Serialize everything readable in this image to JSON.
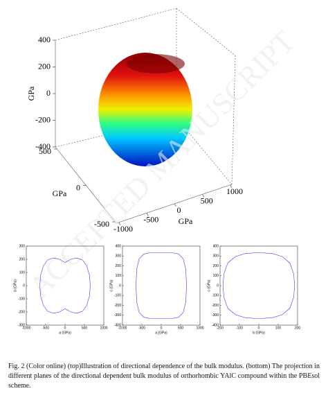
{
  "chart_data": [
    {
      "type": "surface3d",
      "xlabel": "GPa",
      "ylabel": "GPa",
      "zlabel": "GPa",
      "xlim": [
        -1000,
        1000
      ],
      "xticks": [
        -1000,
        -500,
        0,
        500,
        1000
      ],
      "ylim": [
        -500,
        500
      ],
      "yticks": [
        -500,
        0,
        500
      ],
      "zlim": [
        -400,
        400
      ],
      "zticks": [
        -400,
        -200,
        0,
        200,
        400
      ]
    },
    {
      "type": "line",
      "xlabel": "a (GPa)",
      "ylabel": "b (GPa)",
      "color": "#3b3bff",
      "xlim": [
        -1000,
        1000
      ],
      "xticks": [
        -1000,
        -500,
        0,
        500,
        1000
      ],
      "ylim": [
        -300,
        300
      ],
      "yticks": [
        -300,
        -200,
        -100,
        0,
        100,
        200,
        300
      ],
      "x": [
        0,
        150,
        300,
        450,
        560,
        630,
        650,
        630,
        560,
        450,
        300,
        150,
        0,
        -150,
        -300,
        -450,
        -560,
        -630,
        -650,
        -630,
        -560,
        -450,
        -300,
        -150,
        0
      ],
      "values": [
        175,
        200,
        210,
        195,
        150,
        80,
        0,
        -80,
        -150,
        -195,
        -210,
        -200,
        -175,
        -200,
        -210,
        -195,
        -150,
        -80,
        0,
        80,
        150,
        195,
        210,
        200,
        175
      ]
    },
    {
      "type": "line",
      "xlabel": "a (GPa)",
      "ylabel": "c (GPa)",
      "color": "#3b3bff",
      "xlim": [
        -1000,
        1000
      ],
      "xticks": [
        -1000,
        -500,
        0,
        500,
        1000
      ],
      "ylim": [
        -400,
        400
      ],
      "yticks": [
        -400,
        -300,
        -200,
        -100,
        0,
        100,
        200,
        300,
        400
      ],
      "x": [
        0,
        250,
        450,
        570,
        630,
        655,
        630,
        570,
        450,
        250,
        0,
        -250,
        -450,
        -570,
        -630,
        -655,
        -630,
        -570,
        -450,
        -250,
        0
      ],
      "values": [
        335,
        335,
        320,
        270,
        170,
        0,
        -170,
        -270,
        -320,
        -335,
        -335,
        -335,
        -320,
        -270,
        -170,
        0,
        170,
        270,
        320,
        335,
        335
      ]
    },
    {
      "type": "line",
      "xlabel": "b (GPa)",
      "ylabel": "c (GPa)",
      "color": "#3b3bff",
      "xlim": [
        -200,
        200
      ],
      "xticks": [
        -200,
        -100,
        0,
        100,
        200
      ],
      "ylim": [
        -400,
        400
      ],
      "yticks": [
        -400,
        -300,
        -200,
        -100,
        0,
        100,
        200,
        300,
        400
      ],
      "x": [
        0,
        70,
        120,
        160,
        180,
        185,
        180,
        160,
        120,
        70,
        0,
        -70,
        -120,
        -160,
        -180,
        -185,
        -180,
        -160,
        -120,
        -70,
        0
      ],
      "values": [
        335,
        325,
        295,
        230,
        120,
        0,
        -120,
        -230,
        -295,
        -325,
        -335,
        -325,
        -295,
        -230,
        -120,
        0,
        120,
        230,
        295,
        325,
        335
      ]
    }
  ],
  "watermark": "ACCEPTED MANUSCRIPT",
  "caption": "Fig. 2 (Color online) (top)Illustration of directional dependence of the bulk modulus. (bottom) The projection in different planes of the directional dependent bulk modulus of orthorhombic YAlC compound within the PBEsol scheme."
}
